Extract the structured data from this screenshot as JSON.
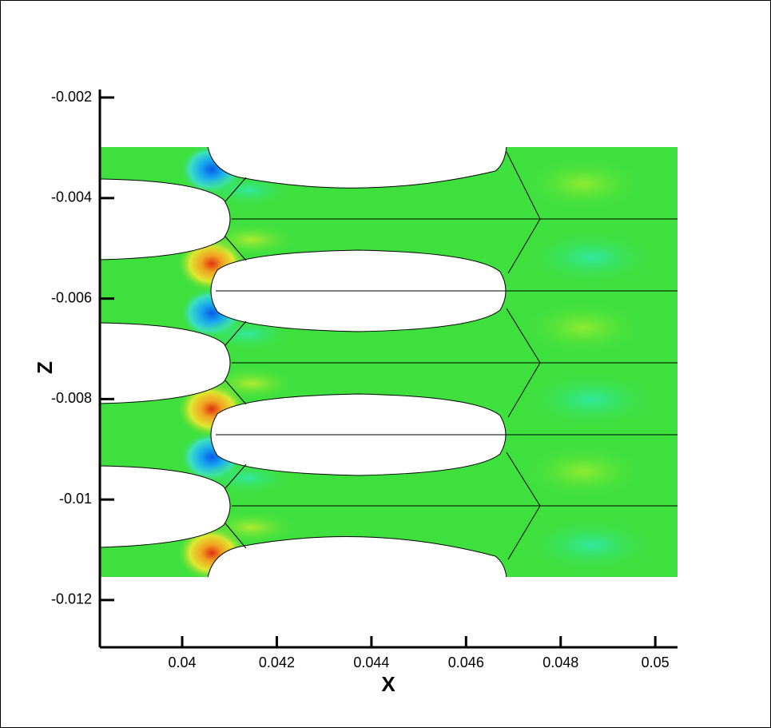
{
  "chart_data": {
    "type": "contour",
    "x_label": "X",
    "y_label": "Z",
    "xlim": [
      0.03826,
      0.05047
    ],
    "ylim": [
      -0.01294,
      -0.00184
    ],
    "xticks": [
      0.04,
      0.042,
      0.044,
      0.046,
      0.048,
      0.05
    ],
    "yticks": [
      -0.002,
      -0.004,
      -0.006,
      -0.008,
      -0.01,
      -0.012
    ]
  }
}
